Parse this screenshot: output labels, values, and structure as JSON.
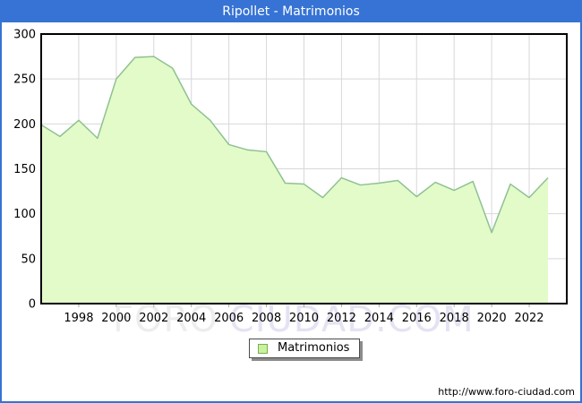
{
  "titlebar": {
    "text": "Ripollet - Matrimonios"
  },
  "chart_data": {
    "type": "area",
    "title": "Ripollet - Matrimonios",
    "x": [
      1996,
      1997,
      1998,
      1999,
      2000,
      2001,
      2002,
      2003,
      2004,
      2005,
      2006,
      2007,
      2008,
      2009,
      2010,
      2011,
      2012,
      2013,
      2014,
      2015,
      2016,
      2017,
      2018,
      2019,
      2020,
      2021,
      2022,
      2023
    ],
    "series": [
      {
        "name": "Matrimonios",
        "values": [
          199,
          186,
          204,
          184,
          250,
          274,
          275,
          262,
          222,
          204,
          177,
          171,
          169,
          134,
          133,
          118,
          140,
          132,
          134,
          137,
          119,
          135,
          126,
          136,
          79,
          133,
          118,
          140
        ]
      }
    ],
    "ylim": [
      0,
      300
    ],
    "yticks": [
      0,
      50,
      100,
      150,
      200,
      250,
      300
    ],
    "xticks": [
      1998,
      2000,
      2002,
      2004,
      2006,
      2008,
      2010,
      2012,
      2014,
      2016,
      2018,
      2020,
      2022
    ],
    "grid": true,
    "legend_position": "bottom-center",
    "colors": {
      "area_fill": "#e3fbc9",
      "line": "#8fc192",
      "grid": "#d8d8dc",
      "tick": "#aaaaaa",
      "axis": "#000000",
      "titlebar_bg": "#3673d4",
      "titlebar_fg": "#ffffff"
    }
  },
  "legend": {
    "label": "Matrimonios",
    "swatch_fill": "#c9f29c",
    "swatch_border": "#79ae53"
  },
  "watermark": {
    "part1": "FORO",
    "part2": "CIUDAD.COM"
  },
  "footer": {
    "url": "http://www.foro-ciudad.com"
  }
}
